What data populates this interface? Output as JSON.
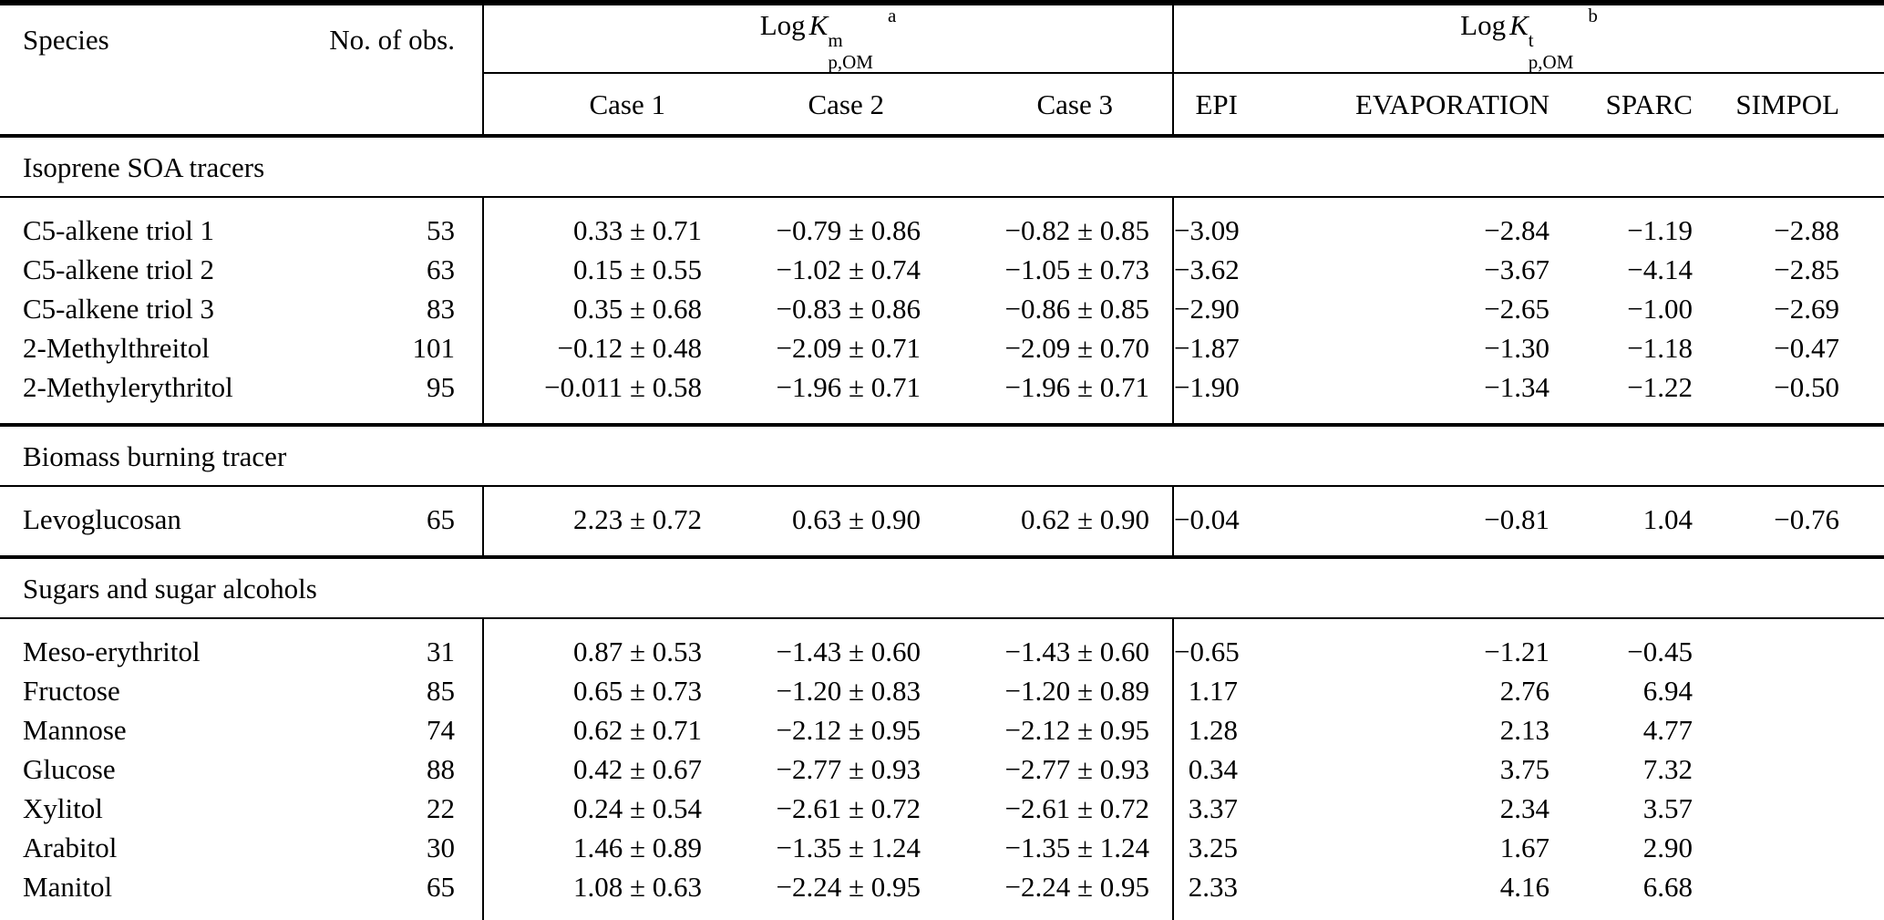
{
  "table": {
    "headers": {
      "species": "Species",
      "obs": "No. of obs.",
      "case1": "Case 1",
      "case2": "Case 2",
      "case3": "Case 3",
      "epi": "EPI",
      "evaporation": "EVAPORATION",
      "sparc": "SPARC",
      "simpol": "SIMPOL"
    },
    "group1": {
      "log": "Log",
      "symbol": "K",
      "sup": "m",
      "sub": "p,OM",
      "note": "a"
    },
    "group2": {
      "log": "Log",
      "symbol": "K",
      "sup": "t",
      "sub": "p,OM",
      "note": "b"
    },
    "sections": [
      {
        "title": "Isoprene SOA tracers",
        "rows": [
          {
            "species": "C5-alkene triol 1",
            "obs": "53",
            "case1": "0.33 ± 0.71",
            "case2": "−0.79 ± 0.86",
            "case3": "−0.82 ± 0.85",
            "epi": "−3.09",
            "evaporation": "−2.84",
            "sparc": "−1.19",
            "simpol": "−2.88"
          },
          {
            "species": "C5-alkene triol 2",
            "obs": "63",
            "case1": "0.15 ± 0.55",
            "case2": "−1.02 ± 0.74",
            "case3": "−1.05 ± 0.73",
            "epi": "−3.62",
            "evaporation": "−3.67",
            "sparc": "−4.14",
            "simpol": "−2.85"
          },
          {
            "species": "C5-alkene triol 3",
            "obs": "83",
            "case1": "0.35 ± 0.68",
            "case2": "−0.83 ± 0.86",
            "case3": "−0.86 ± 0.85",
            "epi": "−2.90",
            "evaporation": "−2.65",
            "sparc": "−1.00",
            "simpol": "−2.69"
          },
          {
            "species": "2-Methylthreitol",
            "obs": "101",
            "case1": "−0.12 ± 0.48",
            "case2": "−2.09 ± 0.71",
            "case3": "−2.09 ± 0.70",
            "epi": "−1.87",
            "evaporation": "−1.30",
            "sparc": "−1.18",
            "simpol": "−0.47"
          },
          {
            "species": "2-Methylerythritol",
            "obs": "95",
            "case1": "−0.011 ± 0.58",
            "case2": "−1.96 ± 0.71",
            "case3": "−1.96 ± 0.71",
            "epi": "−1.90",
            "evaporation": "−1.34",
            "sparc": "−1.22",
            "simpol": "−0.50"
          }
        ]
      },
      {
        "title": "Biomass burning tracer",
        "rows": [
          {
            "species": "Levoglucosan",
            "obs": "65",
            "case1": "2.23 ± 0.72",
            "case2": "0.63 ± 0.90",
            "case3": "0.62 ± 0.90",
            "epi": "−0.04",
            "evaporation": "−0.81",
            "sparc": "1.04",
            "simpol": "−0.76"
          }
        ]
      },
      {
        "title": "Sugars and sugar alcohols",
        "rows": [
          {
            "species": "Meso-erythritol",
            "obs": "31",
            "case1": "0.87 ± 0.53",
            "case2": "−1.43 ± 0.60",
            "case3": "−1.43 ± 0.60",
            "epi": "−0.65",
            "evaporation": "−1.21",
            "sparc": "−0.45",
            "simpol": ""
          },
          {
            "species": "Fructose",
            "obs": "85",
            "case1": "0.65 ± 0.73",
            "case2": "−1.20 ± 0.83",
            "case3": "−1.20 ± 0.89",
            "epi": "1.17",
            "evaporation": "2.76",
            "sparc": "6.94",
            "simpol": ""
          },
          {
            "species": "Mannose",
            "obs": "74",
            "case1": "0.62 ± 0.71",
            "case2": "−2.12 ± 0.95",
            "case3": "−2.12 ± 0.95",
            "epi": "1.28",
            "evaporation": "2.13",
            "sparc": "4.77",
            "simpol": ""
          },
          {
            "species": "Glucose",
            "obs": "88",
            "case1": "0.42 ± 0.67",
            "case2": "−2.77 ± 0.93",
            "case3": "−2.77 ± 0.93",
            "epi": "0.34",
            "evaporation": "3.75",
            "sparc": "7.32",
            "simpol": ""
          },
          {
            "species": "Xylitol",
            "obs": "22",
            "case1": "0.24 ± 0.54",
            "case2": "−2.61 ± 0.72",
            "case3": "−2.61 ± 0.72",
            "epi": "3.37",
            "evaporation": "2.34",
            "sparc": "3.57",
            "simpol": ""
          },
          {
            "species": "Arabitol",
            "obs": "30",
            "case1": "1.46 ± 0.89",
            "case2": "−1.35 ± 1.24",
            "case3": "−1.35 ± 1.24",
            "epi": "3.25",
            "evaporation": "1.67",
            "sparc": "2.90",
            "simpol": ""
          },
          {
            "species": "Manitol",
            "obs": "65",
            "case1": "1.08 ± 0.63",
            "case2": "−2.24 ± 0.95",
            "case3": "−2.24 ± 0.95",
            "epi": "2.33",
            "evaporation": "4.16",
            "sparc": "6.68",
            "simpol": ""
          }
        ]
      }
    ]
  }
}
